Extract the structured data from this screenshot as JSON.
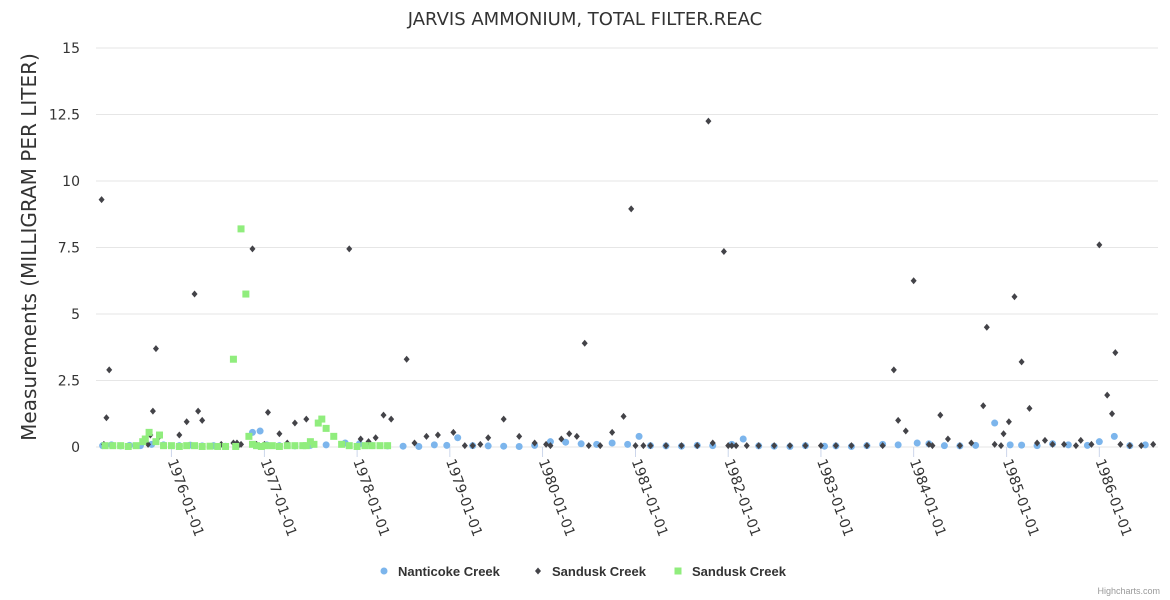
{
  "chart_data": {
    "type": "scatter",
    "title": "JARVIS AMMONIUM, TOTAL FILTER.REAC",
    "xlabel": "",
    "ylabel": "Measurements (MILLIGRAM PER LITER)",
    "ylim": [
      0,
      15
    ],
    "yticks": [
      0,
      2.5,
      5,
      7.5,
      10,
      12.5,
      15
    ],
    "ytick_labels": [
      "0",
      "2.5",
      "5",
      "7.5",
      "10",
      "12.5",
      "15"
    ],
    "xlim": [
      "1975-03-10",
      "1986-08-20"
    ],
    "xticks": [
      "1976-01-01",
      "1977-01-01",
      "1978-01-01",
      "1979-01-01",
      "1980-01-01",
      "1981-01-01",
      "1982-01-01",
      "1983-01-01",
      "1984-01-01",
      "1985-01-01",
      "1986-01-01"
    ],
    "grid": true,
    "legend_position": "bottom-center",
    "series": [
      {
        "name": "Nanticoke Creek",
        "color": "#7cb5ec",
        "marker": "circle",
        "x": [
          "1975-04-05",
          "1975-05-10",
          "1975-06-15",
          "1975-07-20",
          "1975-09-01",
          "1975-10-15",
          "1975-12-01",
          "1976-02-01",
          "1976-03-15",
          "1976-05-01",
          "1976-06-15",
          "1976-08-01",
          "1976-09-15",
          "1976-11-15",
          "1976-12-15",
          "1977-01-10",
          "1977-03-01",
          "1977-05-01",
          "1977-07-01",
          "1977-09-01",
          "1977-11-15",
          "1978-01-10",
          "1978-03-01",
          "1978-05-01",
          "1978-07-01",
          "1978-09-01",
          "1978-11-01",
          "1978-12-20",
          "1979-02-01",
          "1979-04-01",
          "1979-06-01",
          "1979-08-01",
          "1979-10-01",
          "1979-12-01",
          "1980-02-01",
          "1980-04-01",
          "1980-06-01",
          "1980-08-01",
          "1980-10-01",
          "1980-12-01",
          "1981-01-15",
          "1981-03-01",
          "1981-05-01",
          "1981-07-01",
          "1981-09-01",
          "1981-11-01",
          "1982-01-15",
          "1982-03-01",
          "1982-05-01",
          "1982-07-01",
          "1982-09-01",
          "1982-11-01",
          "1983-01-15",
          "1983-03-01",
          "1983-05-01",
          "1983-07-01",
          "1983-09-01",
          "1983-11-01",
          "1984-01-15",
          "1984-03-01",
          "1984-05-01",
          "1984-07-01",
          "1984-09-01",
          "1984-11-15",
          "1985-01-15",
          "1985-03-01",
          "1985-05-01",
          "1985-07-01",
          "1985-09-01",
          "1985-11-15",
          "1986-01-01",
          "1986-03-01",
          "1986-05-01",
          "1986-07-01"
        ],
        "y": [
          0.05,
          0.08,
          0.04,
          0.06,
          0.05,
          0.1,
          0.08,
          0.05,
          0.07,
          0.04,
          0.05,
          0.03,
          0.06,
          0.55,
          0.6,
          0.08,
          0.05,
          0.04,
          0.06,
          0.08,
          0.15,
          0.12,
          0.05,
          0.04,
          0.03,
          0.02,
          0.08,
          0.06,
          0.35,
          0.05,
          0.04,
          0.03,
          0.02,
          0.06,
          0.2,
          0.18,
          0.12,
          0.1,
          0.15,
          0.1,
          0.4,
          0.05,
          0.04,
          0.03,
          0.06,
          0.05,
          0.1,
          0.3,
          0.04,
          0.03,
          0.02,
          0.05,
          0.03,
          0.04,
          0.02,
          0.05,
          0.1,
          0.08,
          0.15,
          0.12,
          0.05,
          0.04,
          0.06,
          0.9,
          0.08,
          0.07,
          0.05,
          0.12,
          0.08,
          0.06,
          0.2,
          0.4,
          0.05,
          0.08
        ]
      },
      {
        "name": "Sandusk Creek",
        "color": "#434348",
        "marker": "diamond",
        "x": [
          "1975-04-01",
          "1975-04-10",
          "1975-04-20",
          "1975-05-01",
          "1975-10-01",
          "1975-10-10",
          "1975-10-20",
          "1975-11-01",
          "1975-11-15",
          "1976-02-01",
          "1976-03-01",
          "1976-04-01",
          "1976-04-15",
          "1976-05-01",
          "1976-07-15",
          "1976-09-01",
          "1976-09-15",
          "1976-09-20",
          "1976-10-01",
          "1976-11-15",
          "1976-12-01",
          "1977-01-01",
          "1977-01-15",
          "1977-03-01",
          "1977-04-01",
          "1977-05-01",
          "1977-06-15",
          "1977-12-01",
          "1978-01-15",
          "1978-02-15",
          "1978-03-15",
          "1978-04-15",
          "1978-05-15",
          "1978-07-15",
          "1978-08-15",
          "1978-10-01",
          "1978-11-15",
          "1979-01-15",
          "1979-03-01",
          "1979-04-01",
          "1979-05-01",
          "1979-06-01",
          "1979-08-01",
          "1979-10-01",
          "1979-12-01",
          "1980-01-15",
          "1980-02-01",
          "1980-03-15",
          "1980-04-15",
          "1980-05-15",
          "1980-06-15",
          "1980-07-01",
          "1980-08-15",
          "1980-10-01",
          "1980-11-15",
          "1980-12-15",
          "1981-01-01",
          "1981-02-01",
          "1981-03-01",
          "1981-05-01",
          "1981-07-01",
          "1981-09-01",
          "1981-10-15",
          "1981-11-01",
          "1981-12-15",
          "1982-01-01",
          "1982-01-15",
          "1982-02-01",
          "1982-03-15",
          "1982-05-01",
          "1982-07-01",
          "1982-09-01",
          "1982-11-01",
          "1983-01-01",
          "1983-03-01",
          "1983-05-01",
          "1983-07-01",
          "1983-09-01",
          "1983-10-15",
          "1983-11-01",
          "1983-12-01",
          "1984-01-01",
          "1984-03-01",
          "1984-03-15",
          "1984-04-15",
          "1984-05-15",
          "1984-07-01",
          "1984-08-15",
          "1984-10-01",
          "1984-10-15",
          "1984-11-15",
          "1984-12-10",
          "1984-12-20",
          "1985-01-10",
          "1985-02-01",
          "1985-03-01",
          "1985-04-01",
          "1985-05-01",
          "1985-06-01",
          "1985-07-01",
          "1985-08-15",
          "1985-10-01",
          "1985-10-20",
          "1985-12-01",
          "1986-01-01",
          "1986-02-01",
          "1986-02-20",
          "1986-03-05",
          "1986-03-25",
          "1986-05-01",
          "1986-06-15",
          "1986-08-01"
        ],
        "y": [
          9.3,
          0.1,
          1.1,
          2.9,
          0.1,
          0.45,
          1.35,
          3.7,
          0.4,
          0.45,
          0.95,
          5.75,
          1.35,
          1.0,
          0.1,
          0.15,
          0.15,
          0.05,
          0.1,
          7.45,
          0.1,
          0.1,
          1.3,
          0.5,
          0.15,
          0.9,
          1.05,
          7.45,
          0.3,
          0.2,
          0.35,
          1.2,
          1.05,
          3.3,
          0.15,
          0.4,
          0.45,
          0.55,
          0.05,
          0.05,
          0.1,
          0.35,
          1.05,
          0.4,
          0.15,
          0.1,
          0.05,
          0.3,
          0.5,
          0.4,
          3.9,
          0.05,
          0.05,
          0.55,
          1.15,
          8.95,
          0.05,
          0.05,
          0.05,
          0.05,
          0.05,
          0.05,
          12.25,
          0.15,
          7.35,
          0.05,
          0.05,
          0.05,
          0.05,
          0.05,
          0.05,
          0.05,
          0.05,
          0.05,
          0.05,
          0.05,
          0.05,
          0.05,
          2.9,
          1.0,
          0.6,
          6.25,
          0.1,
          0.05,
          1.2,
          0.3,
          0.05,
          0.15,
          1.55,
          4.5,
          0.1,
          0.05,
          0.5,
          0.95,
          5.65,
          3.2,
          1.45,
          0.15,
          0.25,
          0.1,
          0.1,
          0.05,
          0.25,
          0.1,
          7.6,
          1.95,
          1.25,
          3.55,
          0.1,
          0.05,
          0.05,
          0.1
        ]
      },
      {
        "name": "Sandusk Creek",
        "color": "#90ed7d",
        "marker": "square",
        "x": [
          "1975-04-15",
          "1975-05-15",
          "1975-06-15",
          "1975-07-15",
          "1975-08-15",
          "1975-09-10",
          "1975-09-20",
          "1975-10-05",
          "1975-11-01",
          "1975-11-15",
          "1975-12-01",
          "1976-01-01",
          "1976-02-01",
          "1976-03-01",
          "1976-04-01",
          "1976-05-01",
          "1976-06-01",
          "1976-07-01",
          "1976-08-01",
          "1976-09-01",
          "1976-09-10",
          "1976-10-01",
          "1976-10-20",
          "1976-11-01",
          "1976-11-15",
          "1976-12-01",
          "1976-12-20",
          "1977-01-05",
          "1977-02-01",
          "1977-03-01",
          "1977-04-01",
          "1977-05-01",
          "1977-06-01",
          "1977-06-15",
          "1977-07-01",
          "1977-07-15",
          "1977-08-01",
          "1977-08-15",
          "1977-09-01",
          "1977-10-01",
          "1977-11-01",
          "1977-12-01",
          "1978-01-01",
          "1978-02-01",
          "1978-03-01",
          "1978-04-01",
          "1978-05-01"
        ],
        "y": [
          0.05,
          0.05,
          0.05,
          0.02,
          0.05,
          0.2,
          0.3,
          0.55,
          0.2,
          0.45,
          0.05,
          0.05,
          0.02,
          0.05,
          0.05,
          0.02,
          0.03,
          0.02,
          0.02,
          3.3,
          0.02,
          8.2,
          5.75,
          0.4,
          0.1,
          0.05,
          0.02,
          0.05,
          0.05,
          0.02,
          0.05,
          0.05,
          0.05,
          0.05,
          0.2,
          0.1,
          0.9,
          1.05,
          0.7,
          0.4,
          0.1,
          0.05,
          0.02,
          0.05,
          0.05,
          0.05,
          0.05
        ]
      }
    ]
  },
  "credits": "Highcharts.com"
}
